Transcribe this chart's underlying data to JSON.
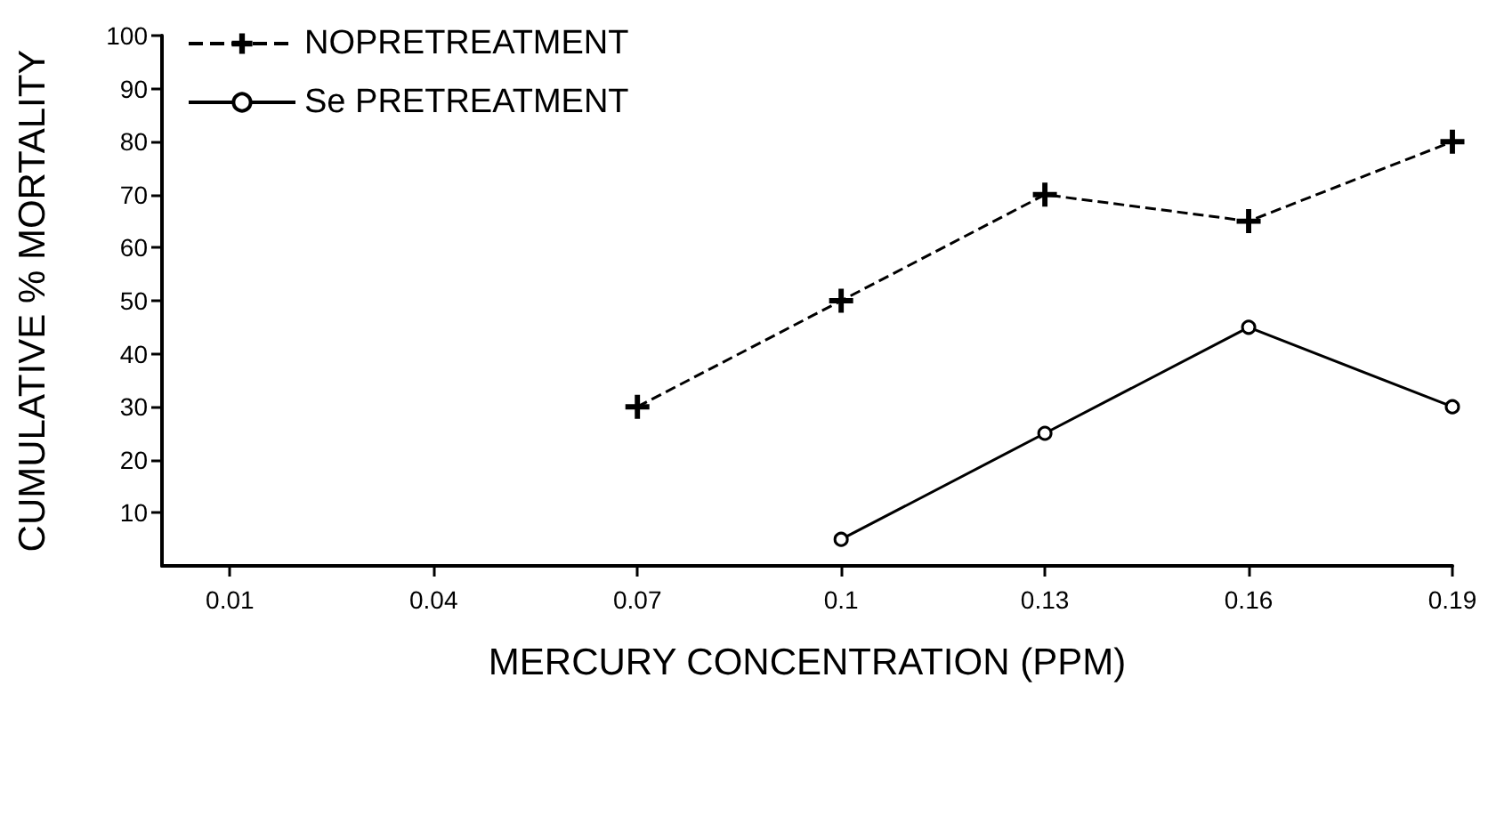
{
  "chart_data": {
    "type": "line",
    "xlabel": "MERCURY CONCENTRATION (PPM)",
    "ylabel": "CUMULATIVE % MORTALITY",
    "xlim": [
      0,
      0.19
    ],
    "xticks": [
      0.01,
      0.04,
      0.07,
      0.1,
      0.13,
      0.16,
      0.19
    ],
    "ylim": [
      0,
      100
    ],
    "yticks": [
      10,
      20,
      30,
      40,
      50,
      60,
      70,
      80,
      90,
      100
    ],
    "series": [
      {
        "name": "NOPRETREATMENT",
        "color": "#000000",
        "x": [
          0.07,
          0.1,
          0.13,
          0.16,
          0.19
        ],
        "values": [
          30,
          50,
          70,
          65,
          80
        ],
        "marker": "cross",
        "line_style": "dashed"
      },
      {
        "name": "Se PRETREATMENT",
        "color": "#000000",
        "x": [
          0.1,
          0.13,
          0.16,
          0.19
        ],
        "values": [
          5,
          25,
          45,
          30
        ],
        "marker": "circle",
        "line_style": "solid"
      }
    ],
    "grid": false,
    "legend": "top left"
  }
}
